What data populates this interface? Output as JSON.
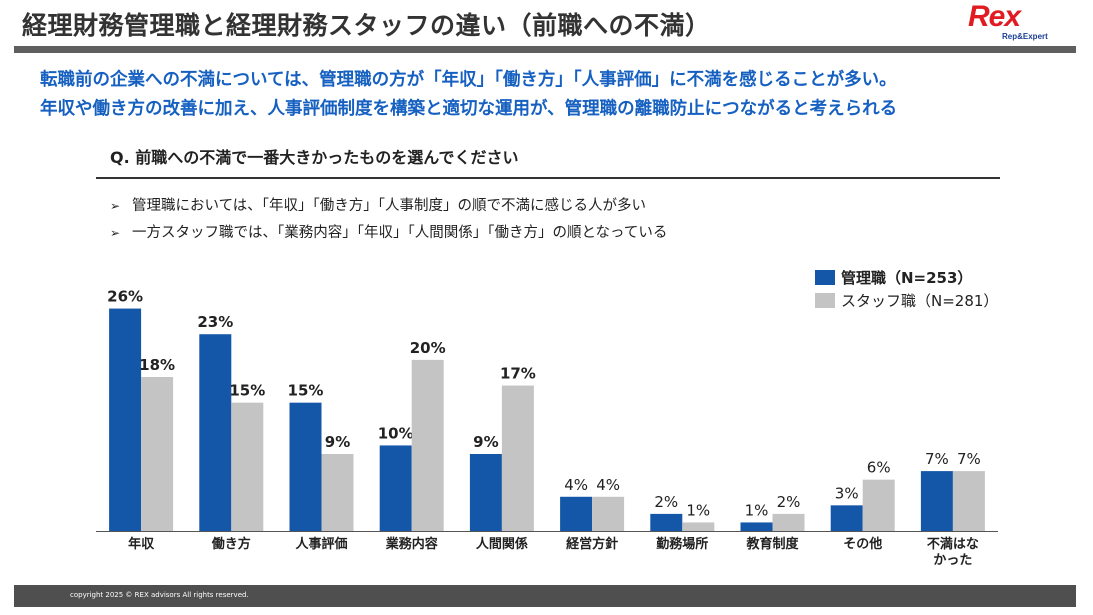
{
  "header": {
    "title": "経理財務管理職と経理財務スタッフの違い（前職への不満）",
    "logo_text": "Rex",
    "logo_sub": "Rep&Expert"
  },
  "summary": {
    "line1": "転職前の企業への不満については、管理職の方が「年収」「働き方」「人事評価」に不満を感じることが多い。",
    "line2": "年収や働き方の改善に加え、人事評価制度を構築と適切な運用が、管理職の離職防止につながると考えられる"
  },
  "question": "Q. 前職への不満で一番大きかったものを選んでください",
  "bullets": [
    "管理職においては、「年収」「働き方」「人事制度」の順で不満に感じる人が多い",
    "一方スタッフ職では、「業務内容」「年収」「人間関係」「働き方」の順となっている"
  ],
  "bullet_symbol": "➢",
  "colors": {
    "manager": "#1456a8",
    "staff": "#c4c4c4",
    "summary": "#1560c0"
  },
  "chart_data": {
    "type": "bar",
    "title": "",
    "xlabel": "",
    "ylabel": "",
    "ylim": [
      0,
      27
    ],
    "categories": [
      "年収",
      "働き方",
      "人事評価",
      "業務内容",
      "人間関係",
      "経営方針",
      "勤務場所",
      "教育制度",
      "その他",
      "不満はなかった"
    ],
    "category_lines": [
      [
        "年収"
      ],
      [
        "働き方"
      ],
      [
        "人事評価"
      ],
      [
        "業務内容"
      ],
      [
        "人間関係"
      ],
      [
        "経営方針"
      ],
      [
        "勤務場所"
      ],
      [
        "教育制度"
      ],
      [
        "その他"
      ],
      [
        "不満はな",
        "かった"
      ]
    ],
    "series": [
      {
        "name": "管理職（N=253）",
        "values": [
          26,
          23,
          15,
          10,
          9,
          4,
          2,
          1,
          3,
          7
        ],
        "labels": [
          "26%",
          "23%",
          "15%",
          "10%",
          "9%",
          "4%",
          "2%",
          "1%",
          "3%",
          "7%"
        ],
        "bold_labels": [
          true,
          true,
          true,
          true,
          true,
          false,
          false,
          false,
          false,
          false
        ]
      },
      {
        "name": "スタッフ職（N=281）",
        "values": [
          18,
          15,
          9,
          20,
          17,
          4,
          1,
          2,
          6,
          7
        ],
        "labels": [
          "18%",
          "15%",
          "9%",
          "20%",
          "17%",
          "4%",
          "1%",
          "2%",
          "6%",
          "7%"
        ],
        "bold_labels": [
          true,
          true,
          true,
          true,
          true,
          false,
          false,
          false,
          false,
          false
        ]
      }
    ],
    "legend_position": "top-right",
    "grid": false
  },
  "footer": {
    "copyright": "copyright 2025 © REX advisors All rights reserved."
  }
}
